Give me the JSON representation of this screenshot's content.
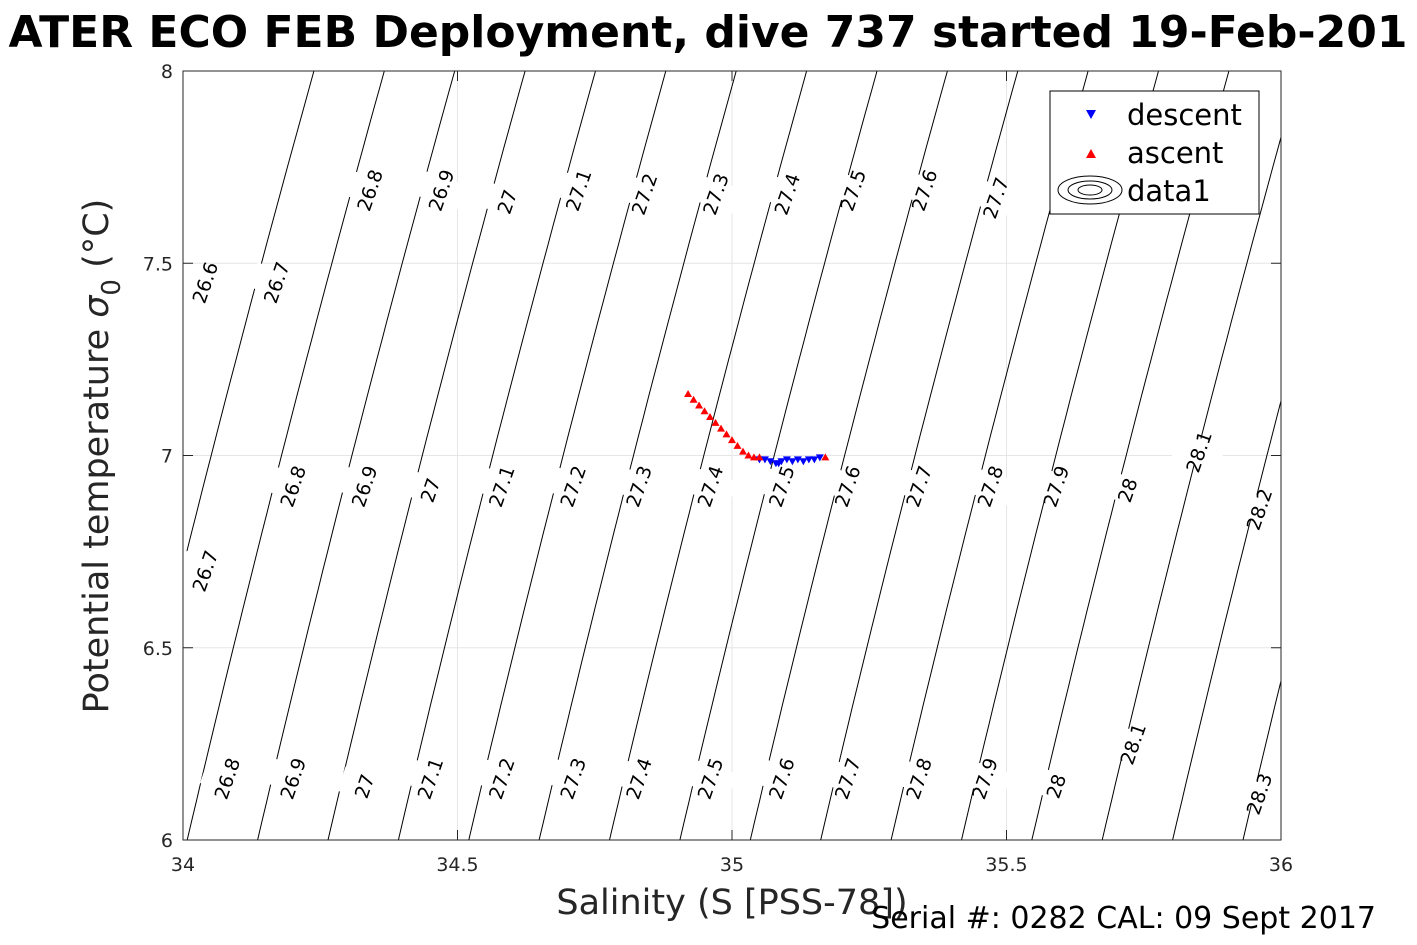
{
  "chart_data": {
    "type": "scatter",
    "title": "ATER ECO FEB Deployment, dive 737 started 19-Feb-201",
    "xlabel": "Salinity (S [PSS-78])",
    "ylabel_main": "Potential temperature ",
    "ylabel_sigma": "σ",
    "ylabel_sub": "0",
    "ylabel_unit": " (°C)",
    "footer": "Serial #: 0282  CAL: 09 Sept 2017",
    "xlim": [
      34,
      36
    ],
    "ylim": [
      6,
      8
    ],
    "x_ticks": [
      "34",
      "34.5",
      "35",
      "35.5",
      "36"
    ],
    "y_ticks": [
      "6",
      "6.5",
      "7",
      "7.5",
      "8"
    ],
    "grid": true,
    "legend_position": "top-right",
    "series": [
      {
        "name": "descent",
        "marker": "triangle-down",
        "color": "#0000ff",
        "points": [
          [
            35.05,
            6.99
          ],
          [
            35.06,
            6.99
          ],
          [
            35.07,
            6.985
          ],
          [
            35.08,
            6.98
          ],
          [
            35.085,
            6.98
          ],
          [
            35.09,
            6.985
          ],
          [
            35.1,
            6.99
          ],
          [
            35.11,
            6.985
          ],
          [
            35.12,
            6.99
          ],
          [
            35.13,
            6.985
          ],
          [
            35.14,
            6.99
          ],
          [
            35.15,
            6.99
          ],
          [
            35.16,
            6.995
          ]
        ]
      },
      {
        "name": "ascent",
        "marker": "triangle-up",
        "color": "#ff0000",
        "points": [
          [
            34.92,
            7.16
          ],
          [
            34.93,
            7.145
          ],
          [
            34.94,
            7.13
          ],
          [
            34.95,
            7.115
          ],
          [
            34.96,
            7.1
          ],
          [
            34.97,
            7.085
          ],
          [
            34.98,
            7.07
          ],
          [
            34.99,
            7.055
          ],
          [
            35.0,
            7.04
          ],
          [
            35.01,
            7.025
          ],
          [
            35.02,
            7.01
          ],
          [
            35.03,
            7.0
          ],
          [
            35.04,
            6.995
          ],
          [
            35.05,
            6.995
          ],
          [
            35.17,
            6.995
          ]
        ]
      },
      {
        "name": "data1",
        "marker": "contour",
        "color": "#000000"
      }
    ],
    "contours": {
      "levels": [
        26.6,
        26.7,
        26.8,
        26.9,
        27,
        27.1,
        27.2,
        27.3,
        27.4,
        27.5,
        27.6,
        27.7,
        27.8,
        27.9,
        28,
        28.1,
        28.2,
        28.3
      ],
      "labels": [
        {
          "text": "26.6",
          "x": 34.04,
          "y": 7.45
        },
        {
          "text": "26.7",
          "x": 34.17,
          "y": 7.45
        },
        {
          "text": "26.8",
          "x": 34.34,
          "y": 7.69
        },
        {
          "text": "26.9",
          "x": 34.47,
          "y": 7.69
        },
        {
          "text": "27",
          "x": 34.59,
          "y": 7.66
        },
        {
          "text": "27.1",
          "x": 34.72,
          "y": 7.69
        },
        {
          "text": "27.2",
          "x": 34.84,
          "y": 7.68
        },
        {
          "text": "27.3",
          "x": 34.97,
          "y": 7.68
        },
        {
          "text": "27.4",
          "x": 35.1,
          "y": 7.68
        },
        {
          "text": "27.5",
          "x": 35.22,
          "y": 7.69
        },
        {
          "text": "27.6",
          "x": 35.35,
          "y": 7.69
        },
        {
          "text": "27.7",
          "x": 35.48,
          "y": 7.67
        },
        {
          "text": "26.8",
          "x": 34.2,
          "y": 6.92
        },
        {
          "text": "26.9",
          "x": 34.33,
          "y": 6.92
        },
        {
          "text": "27",
          "x": 34.45,
          "y": 6.91
        },
        {
          "text": "27.1",
          "x": 34.58,
          "y": 6.92
        },
        {
          "text": "27.2",
          "x": 34.71,
          "y": 6.92
        },
        {
          "text": "27.3",
          "x": 34.83,
          "y": 6.92
        },
        {
          "text": "27.4",
          "x": 34.96,
          "y": 6.92
        },
        {
          "text": "27.5",
          "x": 35.09,
          "y": 6.92
        },
        {
          "text": "27.6",
          "x": 35.21,
          "y": 6.92
        },
        {
          "text": "27.7",
          "x": 35.34,
          "y": 6.92
        },
        {
          "text": "27.8",
          "x": 35.47,
          "y": 6.92
        },
        {
          "text": "27.9",
          "x": 35.59,
          "y": 6.92
        },
        {
          "text": "28",
          "x": 35.72,
          "y": 6.91
        },
        {
          "text": "28.1",
          "x": 35.85,
          "y": 7.01
        },
        {
          "text": "28.2",
          "x": 35.96,
          "y": 6.86
        },
        {
          "text": "26.7",
          "x": 34.04,
          "y": 6.7
        },
        {
          "text": "26.8",
          "x": 34.08,
          "y": 6.16
        },
        {
          "text": "26.9",
          "x": 34.2,
          "y": 6.16
        },
        {
          "text": "27",
          "x": 34.33,
          "y": 6.14
        },
        {
          "text": "27.1",
          "x": 34.45,
          "y": 6.16
        },
        {
          "text": "27.2",
          "x": 34.58,
          "y": 6.16
        },
        {
          "text": "27.3",
          "x": 34.71,
          "y": 6.16
        },
        {
          "text": "27.4",
          "x": 34.83,
          "y": 6.16
        },
        {
          "text": "27.5",
          "x": 34.96,
          "y": 6.16
        },
        {
          "text": "27.6",
          "x": 35.09,
          "y": 6.16
        },
        {
          "text": "27.7",
          "x": 35.21,
          "y": 6.16
        },
        {
          "text": "27.8",
          "x": 35.34,
          "y": 6.16
        },
        {
          "text": "27.9",
          "x": 35.46,
          "y": 6.16
        },
        {
          "text": "28",
          "x": 35.59,
          "y": 6.14
        },
        {
          "text": "28.1",
          "x": 35.73,
          "y": 6.25
        },
        {
          "text": "28.3",
          "x": 35.96,
          "y": 6.12
        }
      ]
    }
  }
}
